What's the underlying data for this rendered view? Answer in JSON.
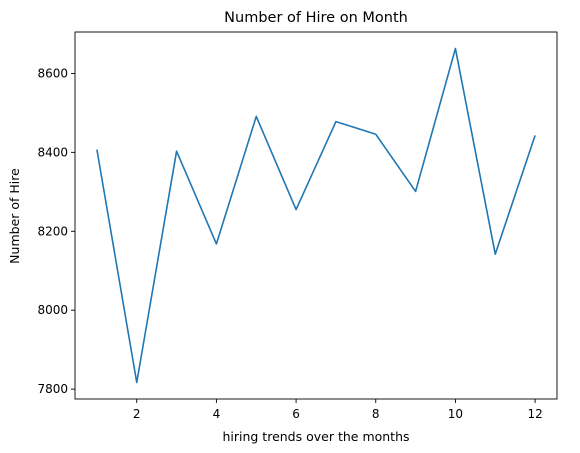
{
  "chart_data": {
    "type": "line",
    "title": "Number of Hire on Month",
    "xlabel": "hiring trends over the months",
    "ylabel": "Number of Hire",
    "x": [
      1,
      2,
      3,
      4,
      5,
      6,
      7,
      8,
      9,
      10,
      11,
      12
    ],
    "series": [
      {
        "values": [
          8407,
          7817,
          8403,
          8168,
          8491,
          8255,
          8478,
          8446,
          8301,
          8663,
          8142,
          8443
        ],
        "color": "#1f77b4"
      }
    ],
    "x_ticks": [
      2,
      4,
      6,
      8,
      10,
      12
    ],
    "y_ticks": [
      7800,
      8000,
      8200,
      8400,
      8600
    ],
    "xlim": [
      0.45,
      12.55
    ],
    "ylim": [
      7775,
      8705
    ],
    "grid": false,
    "legend": "none"
  }
}
